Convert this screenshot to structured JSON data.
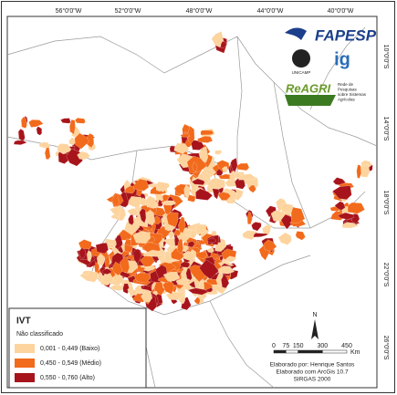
{
  "map": {
    "longitude_labels": [
      "56°0'0\"W",
      "52°0'0\"W",
      "48°0'0\"W",
      "44°0'0\"W",
      "40°0'0\"W"
    ],
    "latitude_labels": [
      "10°0'0\"S",
      "14°0'0\"S",
      "18°0'0\"S",
      "22°0'0\"S",
      "26°0'0\"S"
    ],
    "logos": {
      "fapesp": "FAPESP",
      "unicamp": "UNICAMP",
      "ig": "ig",
      "reagri": "ReAGRI",
      "reagri_subtitle": [
        "Rede de",
        "Pesquisas",
        "sobre Sistemas",
        "Agrícolas"
      ]
    },
    "legend": {
      "title": "IVT",
      "items": [
        {
          "label": "Não classificado",
          "color": "#ffffff"
        },
        {
          "label": "0,001 - 0,449 (Baixo)",
          "color": "#fdd49e"
        },
        {
          "label": "0,450 - 0,549 (Médio)",
          "color": "#f26a1b"
        },
        {
          "label": "0,550 - 0,760 (Alto)",
          "color": "#a8141b"
        }
      ]
    },
    "north": "N",
    "scale": {
      "ticks": [
        0,
        75,
        150,
        300,
        450
      ],
      "unit": "Km"
    },
    "credits": [
      "Elaborado por: Henrique Santos",
      "Elaborado com ArcGis 10.7",
      "SIRGAS 2000"
    ]
  }
}
